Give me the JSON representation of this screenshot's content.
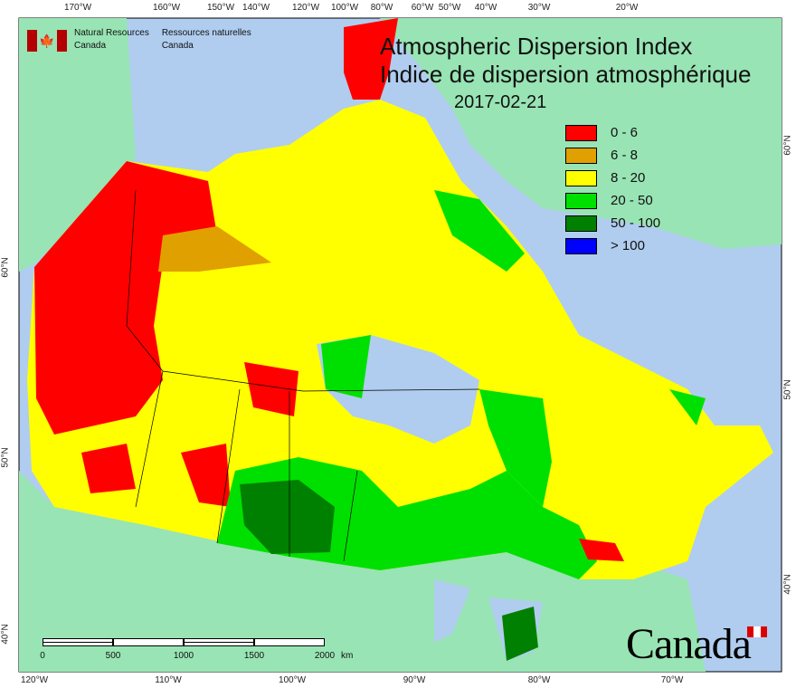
{
  "title": {
    "en": "Atmospheric Dispersion Index",
    "fr": "Indice de dispersion atmosphérique",
    "date": "2017-02-21"
  },
  "agency": {
    "en_line1": "Natural Resources",
    "en_line2": "Canada",
    "fr_line1": "Ressources naturelles",
    "fr_line2": "Canada"
  },
  "wordmark": "Canada",
  "legend": [
    {
      "label": "0 - 6",
      "color": "#ff0000"
    },
    {
      "label": "6 - 8",
      "color": "#e0a000"
    },
    {
      "label": "8 - 20",
      "color": "#ffff00"
    },
    {
      "label": "20 - 50",
      "color": "#00e000"
    },
    {
      "label": "50 - 100",
      "color": "#008000"
    },
    {
      "label": "> 100",
      "color": "#0000ff"
    }
  ],
  "top_ticks": [
    "170°W",
    "160°W",
    "150°W",
    "140°W",
    "120°W",
    "100°W",
    "80°W",
    "60°W",
    "50°W",
    "40°W",
    "30°W",
    "20°W"
  ],
  "bottom_ticks": [
    "120°W",
    "110°W",
    "100°W",
    "90°W",
    "80°W",
    "70°W"
  ],
  "left_ticks": [
    "60°N",
    "50°N",
    "40°N"
  ],
  "right_ticks": [
    "60°N",
    "50°N",
    "40°N"
  ],
  "scale_bar": {
    "labels": [
      "0",
      "500",
      "1000",
      "1500",
      "2000"
    ],
    "unit": "km"
  },
  "colors": {
    "water": "#b0cdef",
    "land": "#98e4b4"
  }
}
